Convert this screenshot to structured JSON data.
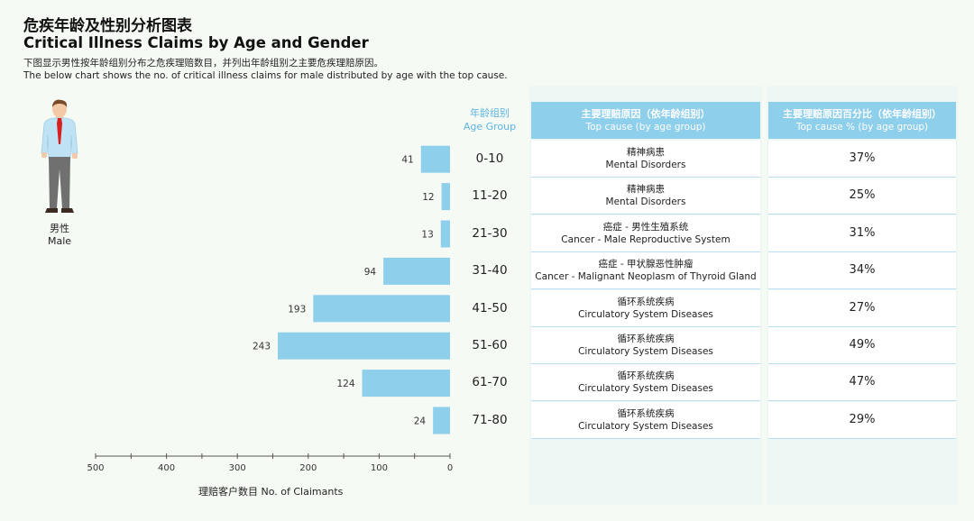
{
  "header": {
    "title_cn": "危疾年龄及性别分析图表",
    "title_en": "Critical Illness Claims by Age and Gender",
    "subtitle_cn": "下图显示男性按年龄组别分布之危疾理赔数目，并列出年龄组别之主要危疾理赔原因。",
    "subtitle_en": "The below chart shows the no. of critical illness claims for male distributed by age with the top cause."
  },
  "person": {
    "label_cn": "男性",
    "label_en": "Male",
    "icon": "male-person-icon"
  },
  "table": {
    "age_head_cn": "年龄组别",
    "age_head_en": "Age Group",
    "cause_head_cn": "主要理赔原因（依年龄组别）",
    "cause_head_en": "Top cause (by age group)",
    "pct_head_cn": "主要理赔原因百分比（依年龄组别）",
    "pct_head_en": "Top cause % (by age group)",
    "rows": [
      {
        "cause_cn": "精神病患",
        "cause_en": "Mental Disorders",
        "pct": "37%"
      },
      {
        "cause_cn": "精神病患",
        "cause_en": "Mental Disorders",
        "pct": "25%"
      },
      {
        "cause_cn": "癌症 - 男性生殖系统",
        "cause_en": "Cancer - Male Reproductive System",
        "pct": "31%"
      },
      {
        "cause_cn": "癌症 - 甲状腺恶性肿瘤",
        "cause_en": "Cancer - Malignant Neoplasm of Thyroid Gland",
        "pct": "34%"
      },
      {
        "cause_cn": "循环系统疾病",
        "cause_en": "Circulatory System Diseases",
        "pct": "27%"
      },
      {
        "cause_cn": "循环系统疾病",
        "cause_en": "Circulatory System Diseases",
        "pct": "49%"
      },
      {
        "cause_cn": "循环系统疾病",
        "cause_en": "Circulatory System Diseases",
        "pct": "47%"
      },
      {
        "cause_cn": "循环系统疾病",
        "cause_en": "Circulatory System Diseases",
        "pct": "29%"
      }
    ]
  },
  "chart_data": {
    "type": "bar",
    "orientation": "horizontal-reversed",
    "categories": [
      "0-10",
      "11-20",
      "21-30",
      "31-40",
      "41-50",
      "51-60",
      "61-70",
      "71-80"
    ],
    "values": [
      41,
      12,
      13,
      94,
      193,
      243,
      124,
      24
    ],
    "xlabel": "理赔客户数目 No. of Claimants",
    "xlim": [
      0,
      500
    ],
    "xticks": [
      500,
      400,
      300,
      200,
      100,
      0
    ],
    "bar_color": "#8ecfec"
  }
}
